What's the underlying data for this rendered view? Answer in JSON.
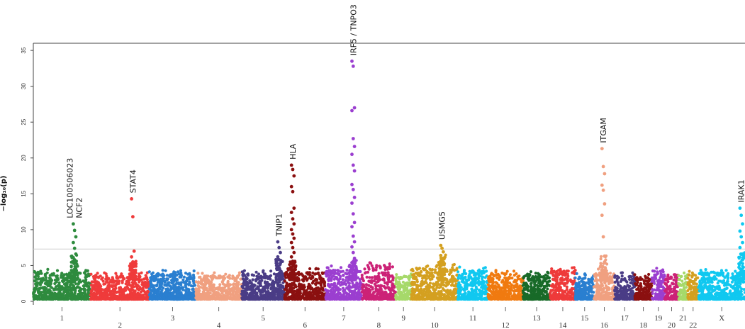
{
  "chart_data": {
    "type": "scatter",
    "subtype": "manhattan",
    "title": "",
    "ylabel": "−log₁₀(p)",
    "xlabel": "",
    "ylim": [
      0,
      36
    ],
    "yticks": [
      0,
      5,
      10,
      15,
      20,
      25,
      30,
      35
    ],
    "significance_line": 7.3,
    "grid": false,
    "chromosomes": [
      {
        "label": "1",
        "color": "#2e8b3e",
        "max": 4.5
      },
      {
        "label": "2",
        "color": "#ef3b3b",
        "max": 4.0
      },
      {
        "label": "3",
        "color": "#2a7fd0",
        "max": 4.4
      },
      {
        "label": "4",
        "color": "#f0a080",
        "max": 4.0
      },
      {
        "label": "5",
        "color": "#4a3c86",
        "max": 4.3
      },
      {
        "label": "6",
        "color": "#8b1010",
        "max": 4.6
      },
      {
        "label": "7",
        "color": "#9b3fd0",
        "max": 5.0
      },
      {
        "label": "8",
        "color": "#cc2277",
        "max": 5.6
      },
      {
        "label": "9",
        "color": "#a6d96a",
        "max": 4.0
      },
      {
        "label": "10",
        "color": "#d4a020",
        "max": 5.2
      },
      {
        "label": "11",
        "color": "#10c8f0",
        "max": 4.8
      },
      {
        "label": "12",
        "color": "#f07a10",
        "max": 4.4
      },
      {
        "label": "13",
        "color": "#186a28",
        "max": 4.2
      },
      {
        "label": "14",
        "color": "#ee3a3a",
        "max": 5.0
      },
      {
        "label": "15",
        "color": "#2a7fd0",
        "max": 4.0
      },
      {
        "label": "16",
        "color": "#f0a080",
        "max": 4.5
      },
      {
        "label": "17",
        "color": "#4a3c86",
        "max": 4.0
      },
      {
        "label": "18",
        "color": "#8b1010",
        "max": 3.8
      },
      {
        "label": "19",
        "color": "#9b3fd0",
        "max": 5.0
      },
      {
        "label": "20",
        "color": "#cc2277",
        "max": 4.2
      },
      {
        "label": "21",
        "color": "#a6d96a",
        "max": 4.0
      },
      {
        "label": "22",
        "color": "#d4a020",
        "max": 4.2
      },
      {
        "label": "X",
        "color": "#10c8f0",
        "max": 4.6
      }
    ],
    "peaks": [
      {
        "gene": "LOC100506023\nNCF2",
        "chrom": "1",
        "pos": 0.72,
        "values": [
          10.8,
          9.9,
          9.0,
          8.2,
          7.4,
          6.6,
          6.1,
          5.8,
          5.5
        ]
      },
      {
        "gene": "STAT4",
        "chrom": "2",
        "pos": 0.72,
        "values": [
          14.3,
          11.8,
          7.0,
          6.2,
          5.5,
          5.0,
          4.6
        ]
      },
      {
        "gene": "TNIP1",
        "chrom": "5",
        "pos": 0.87,
        "values": [
          8.3,
          7.5,
          6.8,
          6.2,
          5.8,
          5.3,
          4.9
        ]
      },
      {
        "gene": "HLA",
        "chrom": "6",
        "pos": 0.2,
        "values": [
          19.0,
          18.4,
          17.5,
          16.0,
          15.3,
          13.0,
          12.4,
          11.5,
          10.8,
          10.0,
          9.4,
          8.8,
          8.2,
          7.5,
          6.8,
          6.2,
          5.6,
          5.0,
          4.6
        ]
      },
      {
        "gene": "IRF5 / TNPO3",
        "chrom": "7",
        "pos": 0.76,
        "values": [
          33.5,
          32.8,
          27.0,
          26.6,
          22.7,
          21.6,
          20.5,
          19.0,
          18.2,
          16.3,
          15.6,
          14.5,
          13.7,
          12.2,
          11.0,
          10.4,
          9.1,
          8.3,
          7.6,
          6.8,
          6.0,
          5.4,
          4.8
        ]
      },
      {
        "gene": "USMG5",
        "chrom": "10",
        "pos": 0.66,
        "values": [
          7.8,
          7.4,
          6.9,
          6.4,
          5.9,
          5.5
        ]
      },
      {
        "gene": "ITGAM",
        "chrom": "16",
        "pos": 0.45,
        "values": [
          21.3,
          18.8,
          17.8,
          16.2,
          15.5,
          13.6,
          12.0,
          9.0,
          5.5
        ]
      },
      {
        "gene": "IRAK1",
        "chrom": "X",
        "pos": 0.92,
        "values": [
          13.0,
          12.0,
          10.8,
          9.8,
          9.0,
          8.2,
          7.5,
          6.6,
          5.8
        ]
      }
    ]
  }
}
